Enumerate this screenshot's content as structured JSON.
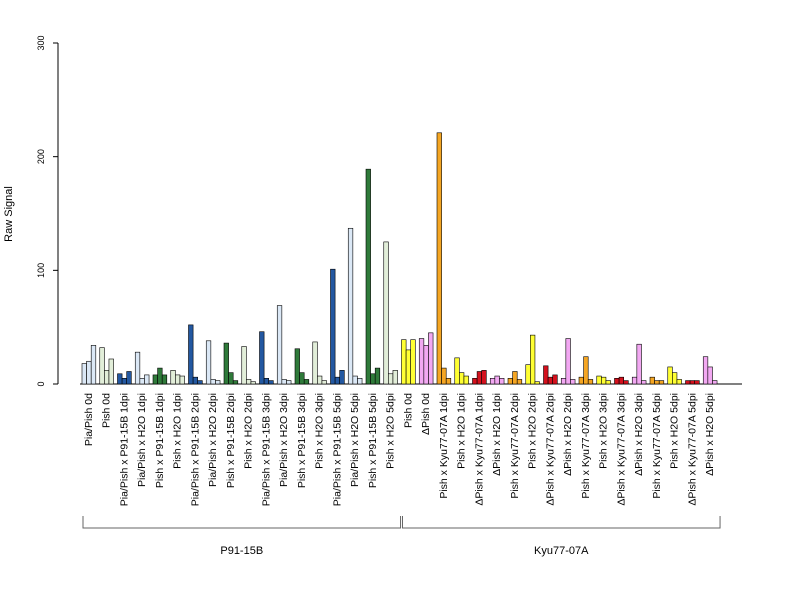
{
  "chart_data": {
    "type": "bar",
    "ylabel": "Raw Signal",
    "ylim": [
      0,
      300
    ],
    "yticks": [
      0,
      100,
      200,
      300
    ],
    "grid": false,
    "categories": [
      "Pia/Pish 0d",
      "Pish 0d",
      "Pia/Pish x P91-15B 1dpi",
      "Pia/Pish x H2O 1dpi",
      "Pish x P91-15B 1dpi",
      "Pish x H2O 1dpi",
      "Pia/Pish x P91-15B 2dpi",
      "Pia/Pish x H2O 2dpi",
      "Pish x P91-15B 2dpi",
      "Pish x H2O 2dpi",
      "Pia/Pish x P91-15B 3dpi",
      "Pia/Pish x H2O 3dpi",
      "Pish x P91-15B 3dpi",
      "Pish x H2O 3dpi",
      "Pia/Pish x P91-15B 5dpi",
      "Pia/Pish x H2O 5dpi",
      "Pish x P91-15B 5dpi",
      "Pish x H2O 5dpi",
      "Pish 0d",
      "ΔPish 0d",
      "Pish x Kyu77-07A 1dpi",
      "Pish x H2O 1dpi",
      "ΔPish x Kyu77-07A 1dpi",
      "ΔPish x H2O 1dpi",
      "Pish x Kyu77-07A 2dpi",
      "Pish x H2O 2dpi",
      "ΔPish x Kyu77-07A 2dpi",
      "ΔPish x H2O 2dpi",
      "Pish x Kyu77-07A 3dpi",
      "Pish x H2O 3dpi",
      "ΔPish x Kyu77-07A 3dpi",
      "ΔPish x H2O 3dpi",
      "Pish x Kyu77-07A 5dpi",
      "Pish x H2O 5dpi",
      "ΔPish x Kyu77-07A 5dpi",
      "ΔPish x H2O 5dpi"
    ],
    "colors": [
      "#dbe8f6",
      "#e2eed9",
      "#2358a1",
      "#dbe8f6",
      "#2f7a3a",
      "#e2eed9",
      "#2358a1",
      "#dbe8f6",
      "#2f7a3a",
      "#e2eed9",
      "#2358a1",
      "#dbe8f6",
      "#2f7a3a",
      "#e2eed9",
      "#2358a1",
      "#dbe8f6",
      "#2f7a3a",
      "#e2eed9",
      "#ffff33",
      "#f2a8f2",
      "#f5a623",
      "#ffff33",
      "#d4111d",
      "#f2a8f2",
      "#f5a623",
      "#ffff33",
      "#d4111d",
      "#f2a8f2",
      "#f5a623",
      "#ffff33",
      "#d4111d",
      "#f2a8f2",
      "#f5a623",
      "#ffff33",
      "#d4111d",
      "#f2a8f2"
    ],
    "values": [
      [
        18,
        20,
        34
      ],
      [
        32,
        12,
        22
      ],
      [
        9,
        5,
        11
      ],
      [
        28,
        5,
        8
      ],
      [
        8,
        14,
        8
      ],
      [
        12,
        8,
        7
      ],
      [
        52,
        6,
        3
      ],
      [
        38,
        4,
        3
      ],
      [
        36,
        10,
        3
      ],
      [
        33,
        4,
        2
      ],
      [
        46,
        5,
        3
      ],
      [
        69,
        4,
        3
      ],
      [
        31,
        10,
        4
      ],
      [
        37,
        7,
        3
      ],
      [
        101,
        6,
        12
      ],
      [
        137,
        7,
        5
      ],
      [
        189,
        9,
        14
      ],
      [
        125,
        9,
        12
      ],
      [
        39,
        30,
        39
      ],
      [
        40,
        34,
        45
      ],
      [
        221,
        14,
        5
      ],
      [
        23,
        10,
        7
      ],
      [
        5,
        11,
        12
      ],
      [
        5,
        7,
        5
      ],
      [
        5,
        11,
        4
      ],
      [
        17,
        43,
        2
      ],
      [
        16,
        6,
        8
      ],
      [
        5,
        40,
        4
      ],
      [
        6,
        24,
        4
      ],
      [
        7,
        6,
        3
      ],
      [
        5,
        6,
        3
      ],
      [
        6,
        35,
        3
      ],
      [
        6,
        3,
        3
      ],
      [
        15,
        10,
        4
      ],
      [
        3,
        3,
        3
      ],
      [
        24,
        15,
        3
      ]
    ],
    "groups": [
      {
        "label": "P91-15B",
        "from": 0,
        "to": 17
      },
      {
        "label": "Kyu77-07A",
        "from": 18,
        "to": 35
      }
    ]
  }
}
